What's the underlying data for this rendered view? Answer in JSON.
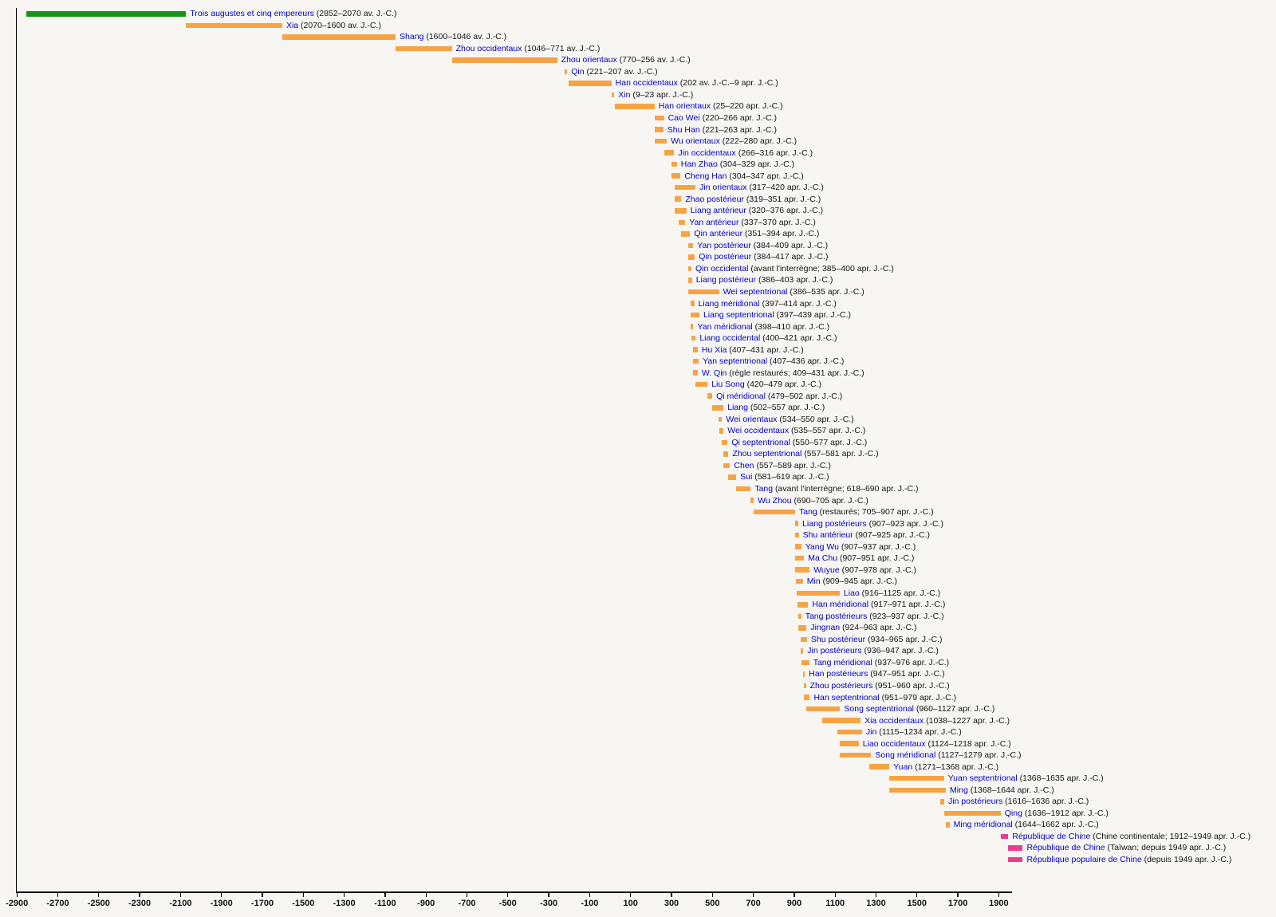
{
  "colors": {
    "background": "#f7f6f3",
    "bar_green": "#159515",
    "bar_orange": "#f7a344",
    "bar_pink": "#ed3c8e",
    "name_blue": "#0000cc",
    "dates_black": "#151515",
    "axis_black": "#000000"
  },
  "chart_data": {
    "type": "bar",
    "variant": "horizontal-timeline",
    "title": "",
    "xlabel": "",
    "ylabel": "",
    "grid": false,
    "x_axis": {
      "min": -2900,
      "max": 2000,
      "tick_step": 200,
      "tick_values": [
        -2900,
        -2700,
        -2500,
        -2300,
        -2100,
        -1900,
        -1700,
        -1500,
        -1300,
        -1100,
        -900,
        -700,
        -500,
        -300,
        -100,
        100,
        300,
        500,
        700,
        900,
        1100,
        1300,
        1500,
        1700,
        1900
      ],
      "tick_labels": [
        "-2900",
        "-2700",
        "-2500",
        "-2300",
        "-2100",
        "-1900",
        "-1700",
        "-1500",
        "-1300",
        "-1100",
        "-900",
        "-700",
        "-500",
        "-300",
        "-100",
        "100",
        "300",
        "500",
        "700",
        "900",
        "1100",
        "1300",
        "1500",
        "1700",
        "1900"
      ]
    },
    "label_format": "{name} ({dates})",
    "entries": [
      {
        "name": "Trois augustes et cinq empereurs",
        "dates": "2852–2070 av. J.-C.",
        "start": -2852,
        "end": -2070,
        "color_key": "bar_green"
      },
      {
        "name": "Xia",
        "dates": "2070–1600 av. J.-C.",
        "start": -2070,
        "end": -1600,
        "color_key": "bar_orange"
      },
      {
        "name": "Shang",
        "dates": "1600–1046 av. J.-C.",
        "start": -1600,
        "end": -1046,
        "color_key": "bar_orange"
      },
      {
        "name": "Zhou occidentaux",
        "dates": "1046–771 av. J.-C.",
        "start": -1046,
        "end": -771,
        "color_key": "bar_orange"
      },
      {
        "name": "Zhou orientaux",
        "dates": "770–256 av. J.-C.",
        "start": -770,
        "end": -256,
        "color_key": "bar_orange"
      },
      {
        "name": "Qin",
        "dates": "221–207 av. J.-C.",
        "start": -221,
        "end": -207,
        "color_key": "bar_orange"
      },
      {
        "name": "Han occidentaux",
        "dates": "202 av. J.-C.–9 apr. J.-C.",
        "start": -202,
        "end": 9,
        "color_key": "bar_orange"
      },
      {
        "name": "Xin",
        "dates": "9–23 apr. J.-C.",
        "start": 9,
        "end": 23,
        "color_key": "bar_orange"
      },
      {
        "name": "Han orientaux",
        "dates": "25–220 apr. J.-C.",
        "start": 25,
        "end": 220,
        "color_key": "bar_orange"
      },
      {
        "name": "Cao Wei",
        "dates": "220–266 apr. J.-C.",
        "start": 220,
        "end": 266,
        "color_key": "bar_orange"
      },
      {
        "name": "Shu Han",
        "dates": "221–263 apr. J.-C.",
        "start": 221,
        "end": 263,
        "color_key": "bar_orange"
      },
      {
        "name": "Wu orientaux",
        "dates": "222–280 apr. J.-C.",
        "start": 222,
        "end": 280,
        "color_key": "bar_orange"
      },
      {
        "name": "Jin occidentaux",
        "dates": "266–316 apr. J.-C.",
        "start": 266,
        "end": 316,
        "color_key": "bar_orange"
      },
      {
        "name": "Han Zhao",
        "dates": "304–329 apr. J.-C.",
        "start": 304,
        "end": 329,
        "color_key": "bar_orange"
      },
      {
        "name": "Cheng Han",
        "dates": "304–347 apr. J.-C.",
        "start": 304,
        "end": 347,
        "color_key": "bar_orange"
      },
      {
        "name": "Jin orientaux",
        "dates": "317–420 apr. J.-C.",
        "start": 317,
        "end": 420,
        "color_key": "bar_orange"
      },
      {
        "name": "Zhao postérieur",
        "dates": "319–351 apr. J.-C.",
        "start": 319,
        "end": 351,
        "color_key": "bar_orange"
      },
      {
        "name": "Liang antérieur",
        "dates": "320–376 apr. J.-C.",
        "start": 320,
        "end": 376,
        "color_key": "bar_orange"
      },
      {
        "name": "Yan antérieur",
        "dates": "337–370 apr. J.-C.",
        "start": 337,
        "end": 370,
        "color_key": "bar_orange"
      },
      {
        "name": "Qin antérieur",
        "dates": "351–394 apr. J.-C.",
        "start": 351,
        "end": 394,
        "color_key": "bar_orange"
      },
      {
        "name": "Yan postérieur",
        "dates": "384–409 apr. J.-C.",
        "start": 384,
        "end": 409,
        "color_key": "bar_orange"
      },
      {
        "name": "Qin postérieur",
        "dates": "384–417 apr. J.-C.",
        "start": 384,
        "end": 417,
        "color_key": "bar_orange"
      },
      {
        "name": "Qin occidental",
        "dates": "avant l'interrègne; 385–400 apr. J.-C.",
        "start": 385,
        "end": 400,
        "color_key": "bar_orange"
      },
      {
        "name": "Liang postérieur",
        "dates": "386–403 apr. J.-C.",
        "start": 386,
        "end": 403,
        "color_key": "bar_orange"
      },
      {
        "name": "Wei septentrional",
        "dates": "386–535 apr. J.-C.",
        "start": 386,
        "end": 535,
        "color_key": "bar_orange"
      },
      {
        "name": "Liang méridional",
        "dates": "397–414 apr. J.-C.",
        "start": 397,
        "end": 414,
        "color_key": "bar_orange"
      },
      {
        "name": "Liang septentrional",
        "dates": "397–439 apr. J.-C.",
        "start": 397,
        "end": 439,
        "color_key": "bar_orange"
      },
      {
        "name": "Yan méridional",
        "dates": "398–410 apr. J.-C.",
        "start": 398,
        "end": 410,
        "color_key": "bar_orange"
      },
      {
        "name": "Liang occidental",
        "dates": "400–421 apr. J.-C.",
        "start": 400,
        "end": 421,
        "color_key": "bar_orange"
      },
      {
        "name": "Hu Xia",
        "dates": "407–431 apr. J.-C.",
        "start": 407,
        "end": 431,
        "color_key": "bar_orange"
      },
      {
        "name": "Yan septentrional",
        "dates": "407–436 apr. J.-C.",
        "start": 407,
        "end": 436,
        "color_key": "bar_orange"
      },
      {
        "name": "W. Qin",
        "dates": "règle restaurés; 409–431 apr. J.-C.",
        "start": 409,
        "end": 431,
        "color_key": "bar_orange"
      },
      {
        "name": "Liu Song",
        "dates": "420–479 apr. J.-C.",
        "start": 420,
        "end": 479,
        "color_key": "bar_orange"
      },
      {
        "name": "Qi méridional",
        "dates": "479–502 apr. J.-C.",
        "start": 479,
        "end": 502,
        "color_key": "bar_orange"
      },
      {
        "name": "Liang",
        "dates": "502–557 apr. J.-C.",
        "start": 502,
        "end": 557,
        "color_key": "bar_orange"
      },
      {
        "name": "Wei orientaux",
        "dates": "534–550 apr. J.-C.",
        "start": 534,
        "end": 550,
        "color_key": "bar_orange"
      },
      {
        "name": "Wei occidentaux",
        "dates": "535–557 apr. J.-C.",
        "start": 535,
        "end": 557,
        "color_key": "bar_orange"
      },
      {
        "name": "Qi septentrional",
        "dates": "550–577 apr. J.-C.",
        "start": 550,
        "end": 577,
        "color_key": "bar_orange"
      },
      {
        "name": "Zhou septentrional",
        "dates": "557–581 apr. J.-C.",
        "start": 557,
        "end": 581,
        "color_key": "bar_orange"
      },
      {
        "name": "Chen",
        "dates": "557–589 apr. J.-C.",
        "start": 557,
        "end": 589,
        "color_key": "bar_orange"
      },
      {
        "name": "Sui",
        "dates": "581–619 apr. J.-C.",
        "start": 581,
        "end": 619,
        "color_key": "bar_orange"
      },
      {
        "name": "Tang",
        "dates": "avant l'interrègne; 618–690 apr. J.-C.",
        "start": 618,
        "end": 690,
        "color_key": "bar_orange"
      },
      {
        "name": "Wu Zhou",
        "dates": "690–705 apr. J.-C.",
        "start": 690,
        "end": 705,
        "color_key": "bar_orange"
      },
      {
        "name": "Tang",
        "dates": "restaurés; 705–907 apr. J.-C.",
        "start": 705,
        "end": 907,
        "color_key": "bar_orange"
      },
      {
        "name": "Liang postérieurs",
        "dates": "907–923 apr. J.-C.",
        "start": 907,
        "end": 923,
        "color_key": "bar_orange"
      },
      {
        "name": "Shu antérieur",
        "dates": "907–925 apr. J.-C.",
        "start": 907,
        "end": 925,
        "color_key": "bar_orange"
      },
      {
        "name": "Yang Wu",
        "dates": "907–937 apr. J.-C.",
        "start": 907,
        "end": 937,
        "color_key": "bar_orange"
      },
      {
        "name": "Ma Chu",
        "dates": "907–951 apr. J.-C.",
        "start": 907,
        "end": 951,
        "color_key": "bar_orange"
      },
      {
        "name": "Wuyue",
        "dates": "907–978 apr. J.-C.",
        "start": 907,
        "end": 978,
        "color_key": "bar_orange"
      },
      {
        "name": "Min",
        "dates": "909–945 apr. J.-C.",
        "start": 909,
        "end": 945,
        "color_key": "bar_orange"
      },
      {
        "name": "Liao",
        "dates": "916–1125 apr. J.-C.",
        "start": 916,
        "end": 1125,
        "color_key": "bar_orange"
      },
      {
        "name": "Han méridional",
        "dates": "917–971 apr. J.-C.",
        "start": 917,
        "end": 971,
        "color_key": "bar_orange"
      },
      {
        "name": "Tang postérieurs",
        "dates": "923–937 apr. J.-C.",
        "start": 923,
        "end": 937,
        "color_key": "bar_orange"
      },
      {
        "name": "Jingnan",
        "dates": "924–963 apr. J.-C.",
        "start": 924,
        "end": 963,
        "color_key": "bar_orange"
      },
      {
        "name": "Shu postérieur",
        "dates": "934–965 apr. J.-C.",
        "start": 934,
        "end": 965,
        "color_key": "bar_orange"
      },
      {
        "name": "Jin postérieurs",
        "dates": "936–947 apr. J.-C.",
        "start": 936,
        "end": 947,
        "color_key": "bar_orange"
      },
      {
        "name": "Tang méridional",
        "dates": "937–976 apr. J.-C.",
        "start": 937,
        "end": 976,
        "color_key": "bar_orange"
      },
      {
        "name": "Han postérieurs",
        "dates": "947–951 apr. J.-C.",
        "start": 947,
        "end": 951,
        "color_key": "bar_orange"
      },
      {
        "name": "Zhou postérieurs",
        "dates": "951–960 apr. J.-C.",
        "start": 951,
        "end": 960,
        "color_key": "bar_orange"
      },
      {
        "name": "Han septentrional",
        "dates": "951–979 apr. J.-C.",
        "start": 951,
        "end": 979,
        "color_key": "bar_orange"
      },
      {
        "name": "Song septentrional",
        "dates": "960–1127 apr. J.-C.",
        "start": 960,
        "end": 1127,
        "color_key": "bar_orange"
      },
      {
        "name": "Xia occidentaux",
        "dates": "1038–1227 apr. J.-C.",
        "start": 1038,
        "end": 1227,
        "color_key": "bar_orange"
      },
      {
        "name": "Jin",
        "dates": "1115–1234 apr. J.-C.",
        "start": 1115,
        "end": 1234,
        "color_key": "bar_orange"
      },
      {
        "name": "Liao occidentaux",
        "dates": "1124–1218 apr. J.-C.",
        "start": 1124,
        "end": 1218,
        "color_key": "bar_orange"
      },
      {
        "name": "Song méridional",
        "dates": "1127–1279 apr. J.-C.",
        "start": 1127,
        "end": 1279,
        "color_key": "bar_orange"
      },
      {
        "name": "Yuan",
        "dates": "1271–1368 apr. J.-C.",
        "start": 1271,
        "end": 1368,
        "color_key": "bar_orange"
      },
      {
        "name": "Yuan septentrional",
        "dates": "1368–1635 apr. J.-C.",
        "start": 1368,
        "end": 1635,
        "color_key": "bar_orange"
      },
      {
        "name": "Ming",
        "dates": "1368–1644 apr. J.-C.",
        "start": 1368,
        "end": 1644,
        "color_key": "bar_orange"
      },
      {
        "name": "Jin postérieurs",
        "dates": "1616–1636 apr. J.-C.",
        "start": 1616,
        "end": 1636,
        "color_key": "bar_orange"
      },
      {
        "name": "Qing",
        "dates": "1636–1912 apr. J.-C.",
        "start": 1636,
        "end": 1912,
        "color_key": "bar_orange"
      },
      {
        "name": "Ming méridional",
        "dates": "1644–1662 apr. J.-C.",
        "start": 1644,
        "end": 1662,
        "color_key": "bar_orange"
      },
      {
        "name": "République de Chine",
        "dates": "Chine continentale; 1912–1949 apr. J.-C.",
        "start": 1912,
        "end": 1949,
        "color_key": "bar_pink"
      },
      {
        "name": "République de Chine",
        "dates": "Taïwan; depuis 1949 apr. J.-C.",
        "start": 1949,
        "end": 2020,
        "color_key": "bar_pink"
      },
      {
        "name": "République populaire de Chine",
        "dates": "depuis 1949 apr. J.-C.",
        "start": 1949,
        "end": 2020,
        "color_key": "bar_pink"
      }
    ]
  }
}
